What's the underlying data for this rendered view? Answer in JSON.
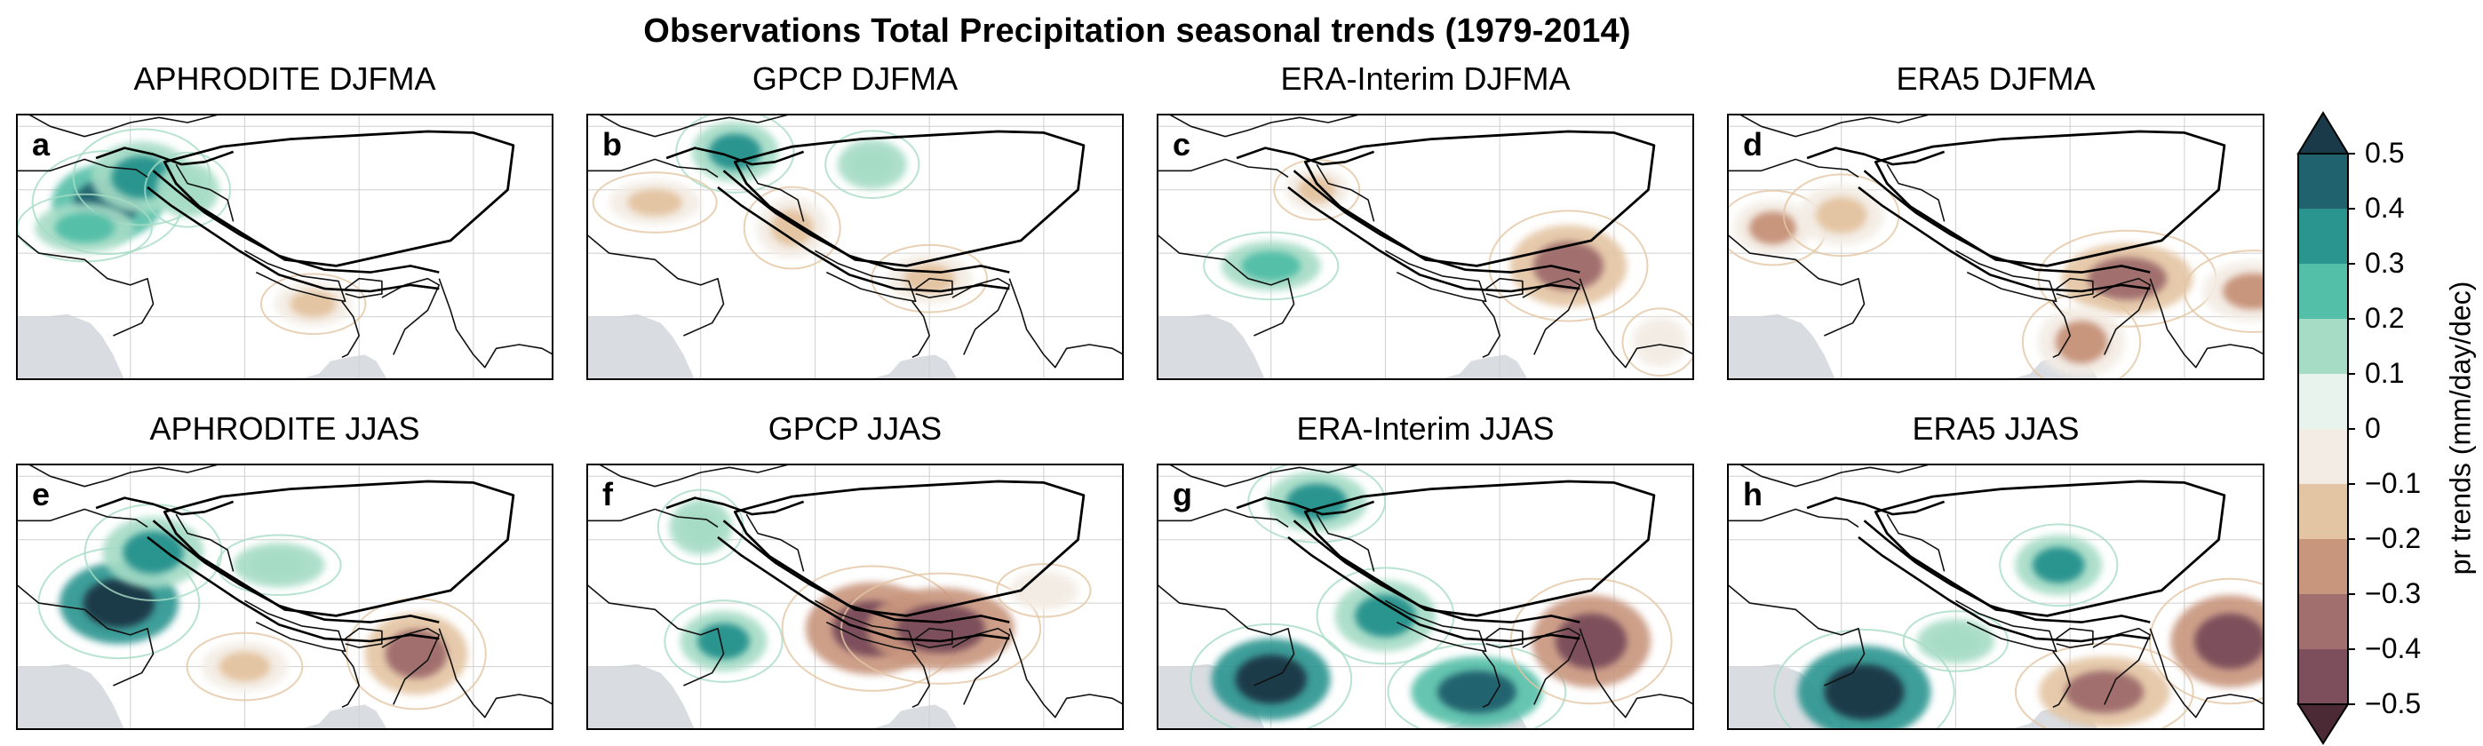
{
  "figure": {
    "title": "Observations Total Precipitation seasonal trends (1979-2014)"
  },
  "chart_data": {
    "type": "heatmap",
    "title": "Observations Total Precipitation seasonal trends (1979-2014)",
    "panels": [
      {
        "letter": "a",
        "title": "APHRODITE DJFMA",
        "dataset": "APHRODITE",
        "season": "DJFMA",
        "blobs": [
          {
            "lon": 68,
            "lat": 34,
            "value": 0.45
          },
          {
            "lon": 71,
            "lat": 36,
            "value": 0.3
          },
          {
            "lon": 66,
            "lat": 32,
            "value": 0.2
          },
          {
            "lon": 75,
            "lat": 35,
            "value": 0.15
          },
          {
            "lon": 86,
            "lat": 26,
            "value": -0.15
          }
        ]
      },
      {
        "letter": "b",
        "title": "GPCP DJFMA",
        "dataset": "GPCP",
        "season": "DJFMA",
        "blobs": [
          {
            "lon": 73,
            "lat": 38,
            "value": 0.3
          },
          {
            "lon": 85,
            "lat": 37,
            "value": 0.1
          },
          {
            "lon": 66,
            "lat": 34,
            "value": -0.15
          },
          {
            "lon": 78,
            "lat": 32,
            "value": -0.2
          },
          {
            "lon": 90,
            "lat": 28,
            "value": -0.2
          }
        ]
      },
      {
        "letter": "c",
        "title": "ERA-Interim DJFMA",
        "dataset": "ERA-Interim",
        "season": "DJFMA",
        "blobs": [
          {
            "lon": 74,
            "lat": 35,
            "value": -0.15
          },
          {
            "lon": 96,
            "lat": 29,
            "value": -0.4
          },
          {
            "lon": 70,
            "lat": 29,
            "value": 0.2
          },
          {
            "lon": 104,
            "lat": 23,
            "value": -0.1
          }
        ]
      },
      {
        "letter": "d",
        "title": "ERA5 DJFMA",
        "dataset": "ERA5",
        "season": "DJFMA",
        "blobs": [
          {
            "lon": 64,
            "lat": 32,
            "value": -0.25
          },
          {
            "lon": 70,
            "lat": 33,
            "value": -0.2
          },
          {
            "lon": 95,
            "lat": 28,
            "value": -0.4
          },
          {
            "lon": 91,
            "lat": 23,
            "value": -0.3
          },
          {
            "lon": 106,
            "lat": 27,
            "value": -0.3
          }
        ]
      },
      {
        "letter": "e",
        "title": "APHRODITE JJAS",
        "dataset": "APHRODITE",
        "season": "JJAS",
        "blobs": [
          {
            "lon": 69,
            "lat": 30,
            "value": 0.5
          },
          {
            "lon": 72,
            "lat": 34,
            "value": 0.3
          },
          {
            "lon": 83,
            "lat": 33,
            "value": 0.15
          },
          {
            "lon": 95,
            "lat": 26,
            "value": -0.4
          },
          {
            "lon": 80,
            "lat": 25,
            "value": -0.2
          }
        ]
      },
      {
        "letter": "f",
        "title": "GPCP JJAS",
        "dataset": "GPCP",
        "season": "JJAS",
        "blobs": [
          {
            "lon": 72,
            "lat": 27,
            "value": 0.3
          },
          {
            "lon": 85,
            "lat": 28,
            "value": -0.5
          },
          {
            "lon": 91,
            "lat": 28,
            "value": -0.5
          },
          {
            "lon": 70,
            "lat": 36,
            "value": 0.15
          },
          {
            "lon": 100,
            "lat": 31,
            "value": -0.1
          }
        ]
      },
      {
        "letter": "g",
        "title": "ERA-Interim JJAS",
        "dataset": "ERA-Interim",
        "season": "JJAS",
        "blobs": [
          {
            "lon": 70,
            "lat": 24,
            "value": 0.5
          },
          {
            "lon": 80,
            "lat": 29,
            "value": 0.3
          },
          {
            "lon": 88,
            "lat": 23,
            "value": 0.4
          },
          {
            "lon": 98,
            "lat": 27,
            "value": -0.5
          },
          {
            "lon": 74,
            "lat": 38,
            "value": 0.3
          }
        ]
      },
      {
        "letter": "h",
        "title": "ERA5 JJAS",
        "dataset": "ERA5",
        "season": "JJAS",
        "blobs": [
          {
            "lon": 89,
            "lat": 33,
            "value": 0.3
          },
          {
            "lon": 72,
            "lat": 23,
            "value": 0.5
          },
          {
            "lon": 93,
            "lat": 23,
            "value": -0.4
          },
          {
            "lon": 104,
            "lat": 27,
            "value": -0.5
          },
          {
            "lon": 80,
            "lat": 27,
            "value": 0.15
          }
        ]
      }
    ],
    "colorbar": {
      "label": "pr trends (mm/day/dec)",
      "ticks": [
        "0.5",
        "0.4",
        "0.3",
        "0.2",
        "0.1",
        "0",
        "−0.1",
        "−0.2",
        "−0.3",
        "−0.4",
        "−0.5"
      ],
      "levels": [
        0.5,
        0.4,
        0.3,
        0.2,
        0.1,
        0,
        -0.1,
        -0.2,
        -0.3,
        -0.4,
        -0.5
      ],
      "colors": [
        "#1a3a4a",
        "#20636f",
        "#2a948f",
        "#54bfa8",
        "#a6dcc6",
        "#e8f3ee",
        "#f3ece4",
        "#e4c5a3",
        "#c8957d",
        "#a16f6e",
        "#7d4f5c",
        "#4b2a36"
      ],
      "extend": "both"
    },
    "map": {
      "lon_range": [
        60,
        107
      ],
      "lat_range": [
        20,
        41
      ],
      "grid": true
    }
  }
}
